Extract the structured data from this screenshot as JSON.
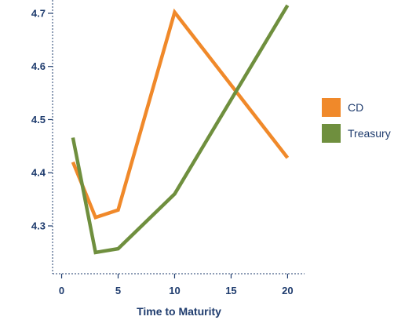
{
  "chart_data": {
    "type": "line",
    "title": "",
    "xlabel": "Time to Maturity",
    "ylabel": "",
    "x_ticks": [
      0,
      5,
      10,
      15,
      20
    ],
    "y_ticks": [
      4.3,
      4.4,
      4.5,
      4.6,
      4.7
    ],
    "xlim": [
      -0.8,
      21.5
    ],
    "ylim": [
      4.21,
      4.725
    ],
    "grid": false,
    "legend_position": "right",
    "series": [
      {
        "name": "CD",
        "color": "#f0892a",
        "x": [
          1,
          3,
          5,
          10,
          20
        ],
        "values": [
          4.42,
          4.316,
          4.33,
          4.702,
          4.428
        ]
      },
      {
        "name": "Treasury",
        "color": "#6f8f3e",
        "x": [
          1,
          3,
          5,
          10,
          20
        ],
        "values": [
          4.466,
          4.25,
          4.257,
          4.36,
          4.715
        ]
      }
    ]
  }
}
